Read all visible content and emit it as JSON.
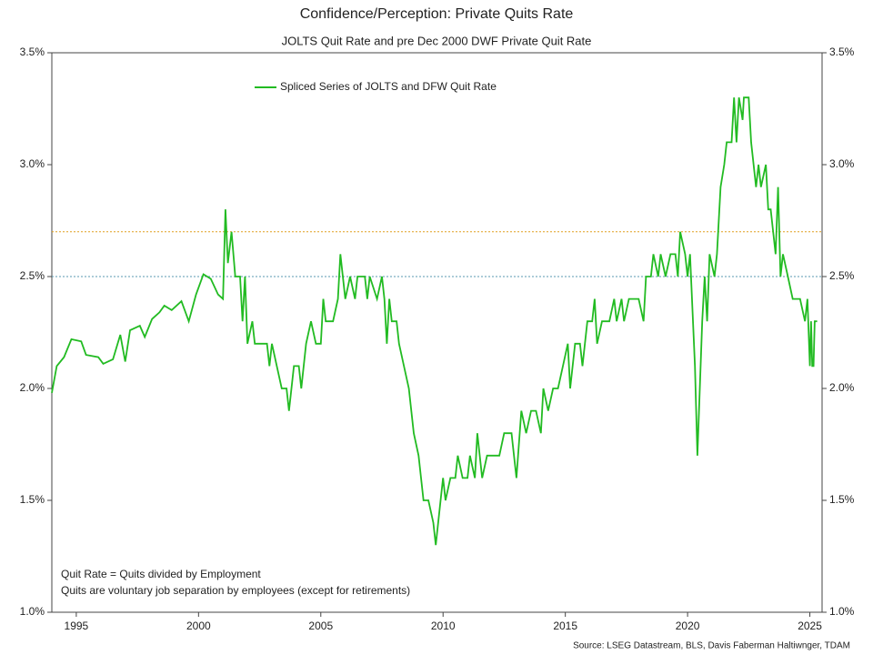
{
  "chart_data": {
    "type": "line",
    "title": "Confidence/Perception: Private Quits Rate",
    "subtitle": "JOLTS Quit Rate and pre Dec 2000 DWF Private Quit Rate",
    "annotations": [
      "Quit Rate = Quits divided by Employment",
      "Quits are voluntary job separation by employees (except for retirements)"
    ],
    "source": "Source: LSEG Datastream, BLS, Davis Faberman Haltiwnger, TDAM",
    "legend": "top",
    "x": [
      1994.0,
      1994.2,
      1994.5,
      1994.8,
      1995.2,
      1995.4,
      1995.9,
      1996.1,
      1996.5,
      1996.8,
      1997.0,
      1997.2,
      1997.6,
      1997.8,
      1998.1,
      1998.4,
      1998.6,
      1998.9,
      1999.3,
      1999.6,
      1999.9,
      2000.2,
      2000.5,
      2000.8,
      2001.0,
      2001.1,
      2001.2,
      2001.35,
      2001.5,
      2001.7,
      2001.8,
      2001.9,
      2002.0,
      2002.2,
      2002.3,
      2002.5,
      2002.8,
      2002.9,
      2003.0,
      2003.2,
      2003.4,
      2003.6,
      2003.7,
      2003.9,
      2004.1,
      2004.2,
      2004.4,
      2004.6,
      2004.8,
      2005.0,
      2005.1,
      2005.2,
      2005.5,
      2005.7,
      2005.8,
      2006.0,
      2006.2,
      2006.4,
      2006.5,
      2006.8,
      2006.9,
      2007.0,
      2007.3,
      2007.5,
      2007.6,
      2007.7,
      2007.8,
      2007.9,
      2008.1,
      2008.2,
      2008.4,
      2008.6,
      2008.8,
      2009.0,
      2009.2,
      2009.4,
      2009.6,
      2009.7,
      2009.9,
      2010.0,
      2010.1,
      2010.3,
      2010.5,
      2010.6,
      2010.8,
      2011.0,
      2011.1,
      2011.3,
      2011.4,
      2011.6,
      2011.8,
      2012.0,
      2012.3,
      2012.5,
      2012.8,
      2012.9,
      2013.0,
      2013.2,
      2013.4,
      2013.6,
      2013.8,
      2014.0,
      2014.1,
      2014.3,
      2014.5,
      2014.7,
      2014.9,
      2015.1,
      2015.2,
      2015.4,
      2015.6,
      2015.7,
      2015.9,
      2016.1,
      2016.2,
      2016.3,
      2016.5,
      2016.8,
      2017.0,
      2017.1,
      2017.3,
      2017.4,
      2017.6,
      2018.0,
      2018.2,
      2018.3,
      2018.5,
      2018.6,
      2018.8,
      2018.9,
      2019.1,
      2019.3,
      2019.5,
      2019.6,
      2019.7,
      2019.9,
      2020.0,
      2020.1,
      2020.3,
      2020.4,
      2020.6,
      2020.7,
      2020.8,
      2020.9,
      2021.1,
      2021.2,
      2021.35,
      2021.5,
      2021.6,
      2021.8,
      2021.9,
      2022.0,
      2022.1,
      2022.25,
      2022.3,
      2022.5,
      2022.6,
      2022.8,
      2022.9,
      2023.0,
      2023.2,
      2023.3,
      2023.4,
      2023.5,
      2023.6,
      2023.7,
      2023.8,
      2023.9,
      2024.1,
      2024.3,
      2024.6,
      2024.8,
      2024.9,
      2025.0,
      2025.05,
      2025.1,
      2025.15,
      2025.2,
      2025.3
    ],
    "series": [
      {
        "name": "Spliced Series of JOLTS and DFW Quit Rate",
        "color": "#22bb22",
        "values": [
          1.98,
          2.1,
          2.14,
          2.22,
          2.21,
          2.15,
          2.14,
          2.11,
          2.13,
          2.24,
          2.12,
          2.26,
          2.28,
          2.23,
          2.31,
          2.34,
          2.37,
          2.35,
          2.39,
          2.3,
          2.42,
          2.51,
          2.49,
          2.42,
          2.4,
          2.8,
          2.56,
          2.7,
          2.5,
          2.5,
          2.3,
          2.5,
          2.2,
          2.3,
          2.2,
          2.2,
          2.2,
          2.1,
          2.2,
          2.1,
          2.0,
          2.0,
          1.9,
          2.1,
          2.1,
          2.0,
          2.2,
          2.3,
          2.2,
          2.2,
          2.4,
          2.3,
          2.3,
          2.4,
          2.6,
          2.4,
          2.5,
          2.4,
          2.5,
          2.5,
          2.4,
          2.5,
          2.4,
          2.5,
          2.4,
          2.2,
          2.4,
          2.3,
          2.3,
          2.2,
          2.1,
          2.0,
          1.8,
          1.7,
          1.5,
          1.5,
          1.4,
          1.3,
          1.5,
          1.6,
          1.5,
          1.6,
          1.6,
          1.7,
          1.6,
          1.6,
          1.7,
          1.6,
          1.8,
          1.6,
          1.7,
          1.7,
          1.7,
          1.8,
          1.8,
          1.7,
          1.6,
          1.9,
          1.8,
          1.9,
          1.9,
          1.8,
          2.0,
          1.9,
          2.0,
          2.0,
          2.1,
          2.2,
          2.0,
          2.2,
          2.2,
          2.1,
          2.3,
          2.3,
          2.4,
          2.2,
          2.3,
          2.3,
          2.4,
          2.3,
          2.4,
          2.3,
          2.4,
          2.4,
          2.3,
          2.5,
          2.5,
          2.6,
          2.5,
          2.6,
          2.5,
          2.6,
          2.6,
          2.5,
          2.7,
          2.6,
          2.5,
          2.6,
          2.1,
          1.7,
          2.3,
          2.5,
          2.3,
          2.6,
          2.5,
          2.6,
          2.9,
          3.0,
          3.1,
          3.1,
          3.3,
          3.1,
          3.3,
          3.2,
          3.3,
          3.3,
          3.1,
          2.9,
          3.0,
          2.9,
          3.0,
          2.8,
          2.8,
          2.7,
          2.6,
          2.9,
          2.5,
          2.6,
          2.5,
          2.4,
          2.4,
          2.3,
          2.4,
          2.1,
          2.3,
          2.1,
          2.1,
          2.3,
          2.3
        ]
      }
    ],
    "reference_lines": [
      {
        "value": 2.7,
        "color": "#e0a020"
      },
      {
        "value": 2.5,
        "color": "#5a9ab0"
      }
    ],
    "xlim": [
      1994,
      2025.5
    ],
    "xticks": [
      1995,
      2000,
      2005,
      2010,
      2015,
      2020,
      2025
    ],
    "ylim": [
      1.0,
      3.5
    ],
    "yticks": [
      {
        "value": 1.0,
        "label": "1.0%"
      },
      {
        "value": 1.5,
        "label": "1.5%"
      },
      {
        "value": 2.0,
        "label": "2.0%"
      },
      {
        "value": 2.5,
        "label": "2.5%"
      },
      {
        "value": 3.0,
        "label": "3.0%"
      },
      {
        "value": 3.5,
        "label": "3.5%"
      }
    ]
  }
}
